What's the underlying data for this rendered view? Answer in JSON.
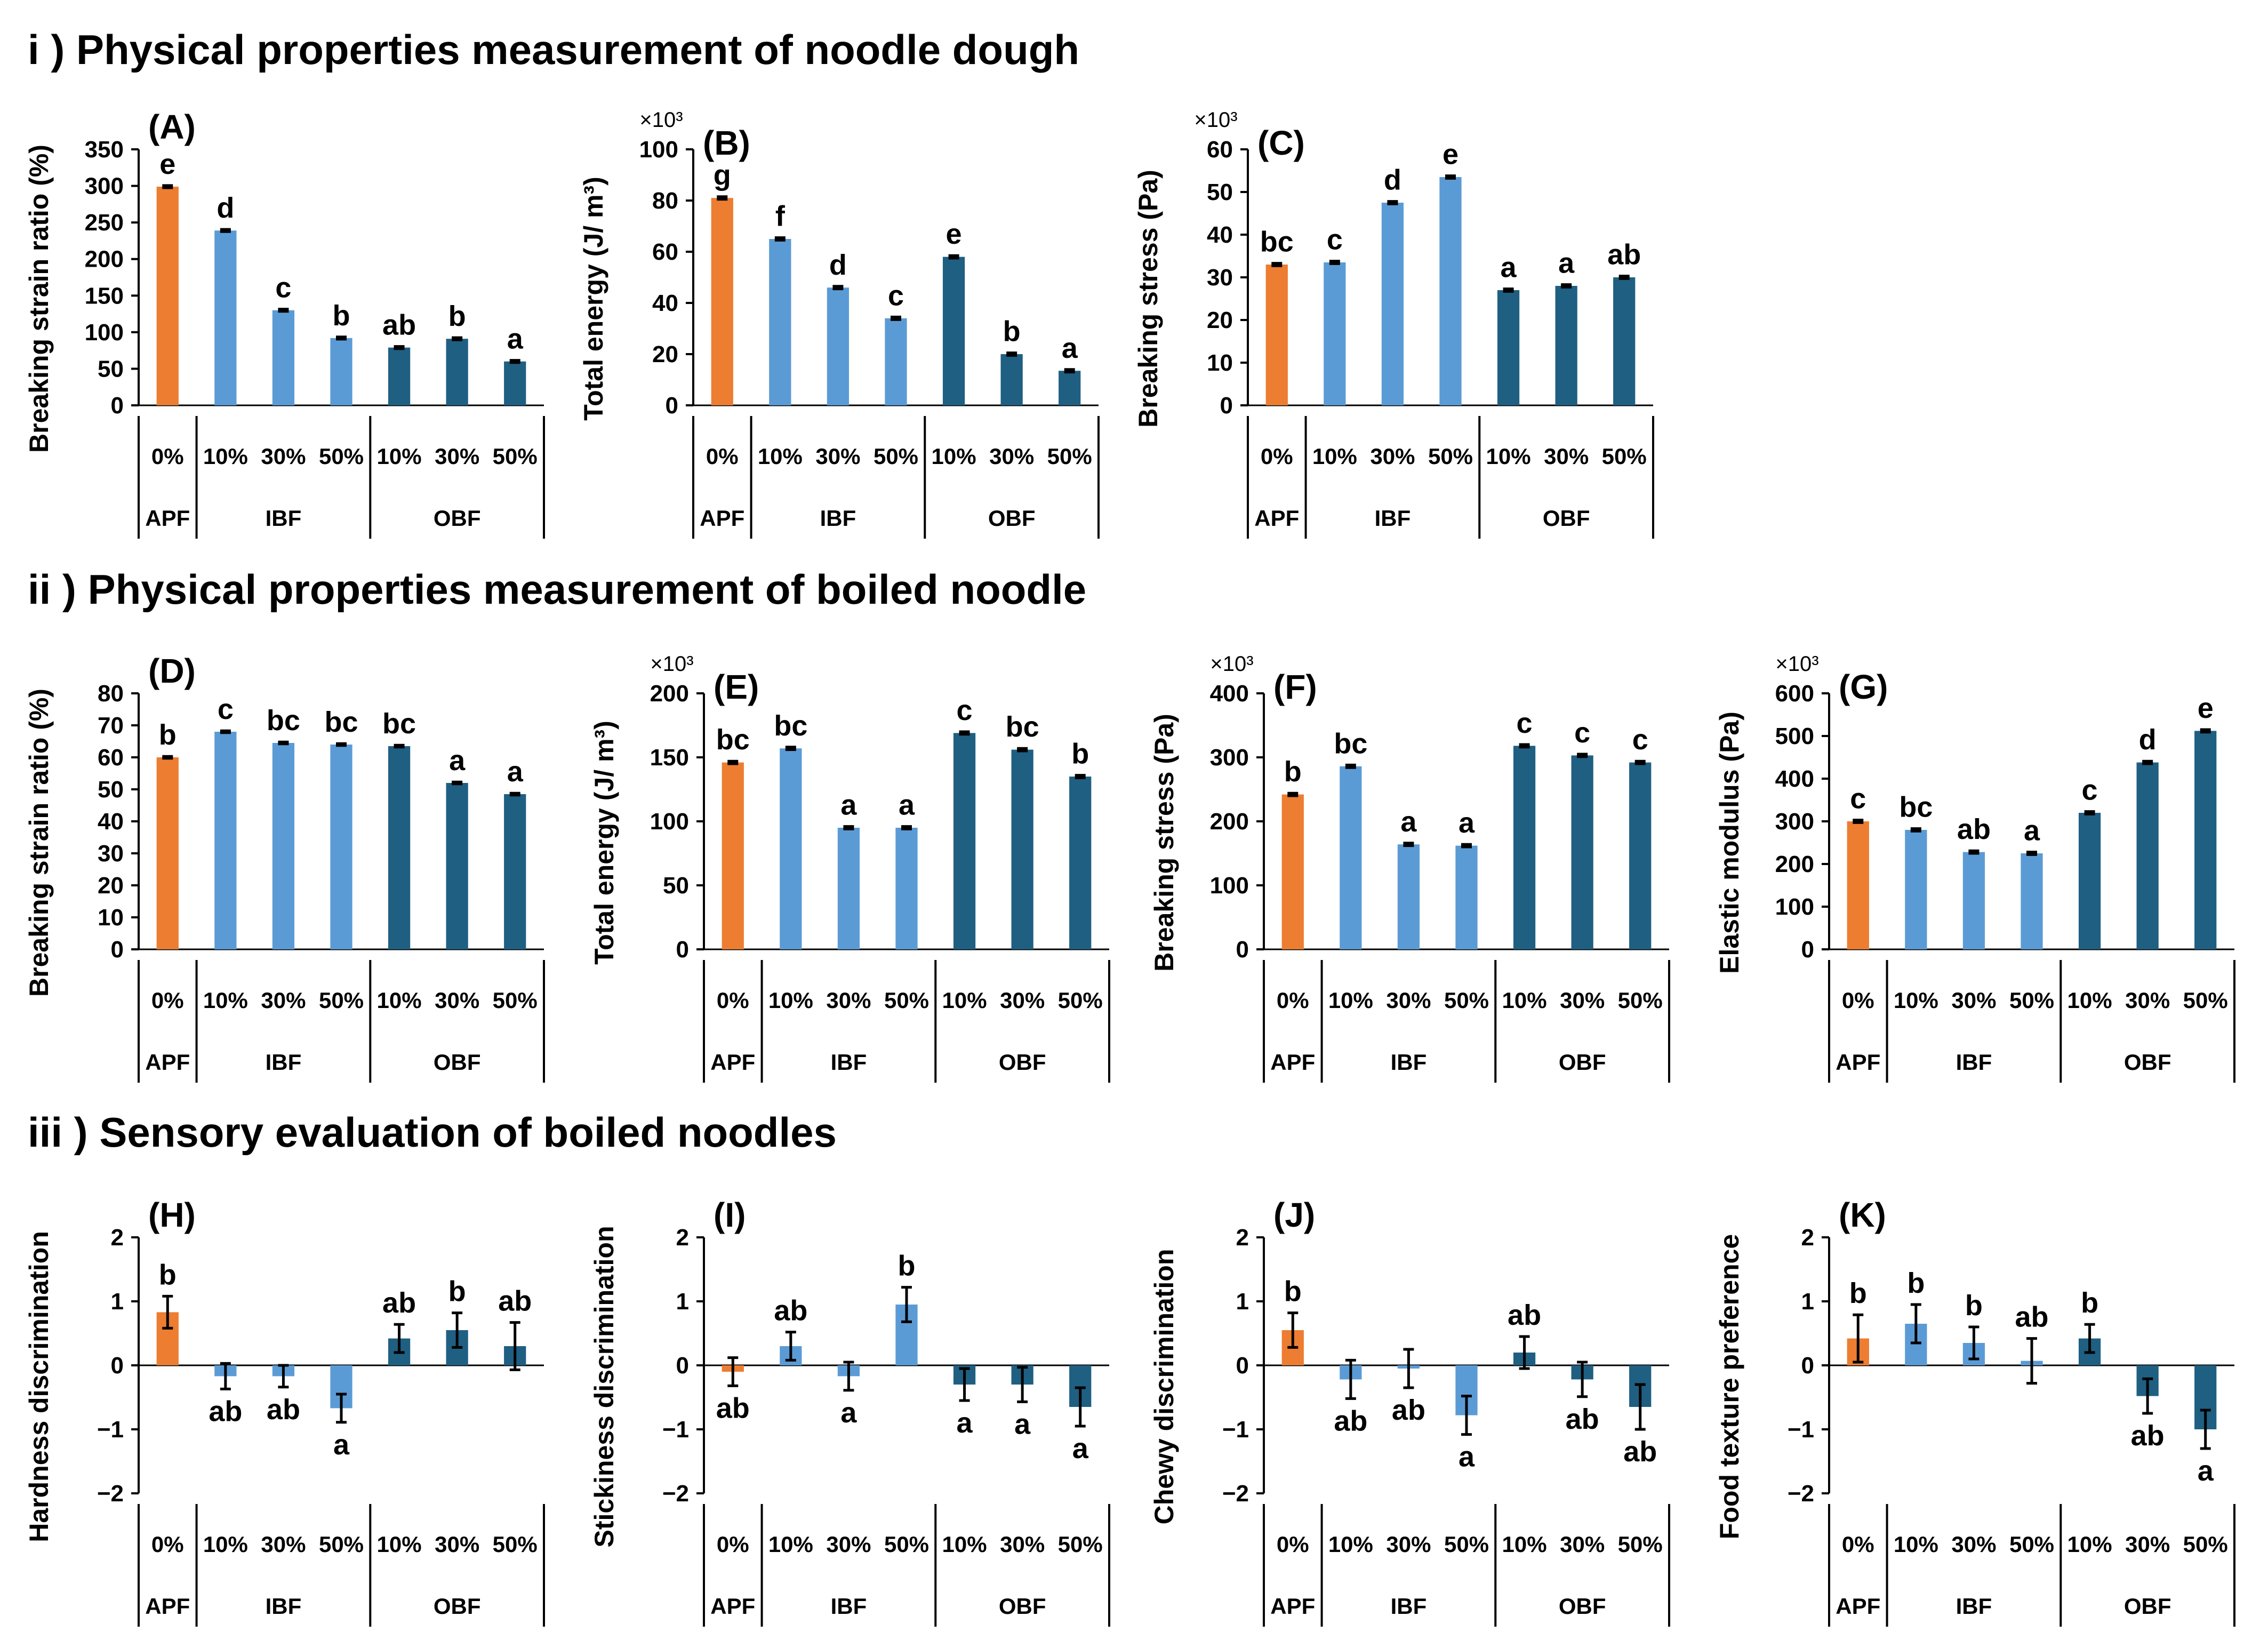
{
  "sections": [
    {
      "title": "i ) Physical properties measurement of noodle dough"
    },
    {
      "title": "ii ) Physical properties measurement of boiled noodle"
    },
    {
      "title": "iii ) Sensory evaluation of boiled noodles"
    }
  ],
  "x_groups": {
    "sub_labels": [
      "0%",
      "10%",
      "30%",
      "50%",
      "10%",
      "30%",
      "50%"
    ],
    "group_labels": [
      "APF",
      "IBF",
      "OBF"
    ]
  },
  "colors": {
    "APF": "#ED7D31",
    "IBF": "#5B9BD5",
    "OBF": "#1F5F82",
    "error_bar": "#000000"
  },
  "chart_data": [
    {
      "id": "A",
      "panel_label": "(A)",
      "type": "bar",
      "ylabel": "Breaking strain ratio (%)",
      "multiplier": "",
      "ylim": [
        0,
        350
      ],
      "yticks": [
        0,
        50,
        100,
        150,
        200,
        250,
        300,
        350
      ],
      "values": [
        299,
        239,
        130,
        92,
        79,
        91,
        60
      ],
      "errors": [
        1.5,
        1.5,
        1.5,
        1.5,
        1.5,
        1.5,
        1.5
      ],
      "letters": [
        "e",
        "d",
        "c",
        "b",
        "ab",
        "b",
        "a"
      ]
    },
    {
      "id": "B",
      "panel_label": "(B)",
      "type": "bar",
      "ylabel": "Total energy (J/ m³)",
      "multiplier": "×10³",
      "ylim": [
        0,
        100
      ],
      "yticks": [
        0,
        20,
        40,
        60,
        80,
        100
      ],
      "values": [
        81,
        65,
        46,
        34,
        58,
        20,
        13.5
      ],
      "errors": [
        0.5,
        0.5,
        0.5,
        0.5,
        0.5,
        0.5,
        0.5
      ],
      "letters": [
        "g",
        "f",
        "d",
        "c",
        "e",
        "b",
        "a"
      ]
    },
    {
      "id": "C",
      "panel_label": "(C)",
      "type": "bar",
      "ylabel": "Breaking stress (Pa)",
      "multiplier": "×10³",
      "ylim": [
        0,
        60
      ],
      "yticks": [
        0,
        10,
        20,
        30,
        40,
        50,
        60
      ],
      "values": [
        33,
        33.5,
        47.5,
        53.5,
        27,
        28,
        30
      ],
      "errors": [
        0.3,
        0.3,
        0.3,
        0.3,
        0.3,
        0.3,
        0.3
      ],
      "letters": [
        "bc",
        "c",
        "d",
        "e",
        "a",
        "a",
        "ab"
      ]
    },
    {
      "id": "D",
      "panel_label": "(D)",
      "type": "bar",
      "ylabel": "Breaking strain ratio (%)",
      "multiplier": "",
      "ylim": [
        0,
        80
      ],
      "yticks": [
        0,
        10,
        20,
        30,
        40,
        50,
        60,
        70,
        80
      ],
      "values": [
        60,
        68,
        64.5,
        64,
        63.5,
        52,
        48.5
      ],
      "errors": [
        0.3,
        0.3,
        0.3,
        0.3,
        0.3,
        0.3,
        0.3
      ],
      "letters": [
        "b",
        "c",
        "bc",
        "bc",
        "bc",
        "a",
        "a"
      ]
    },
    {
      "id": "E",
      "panel_label": "(E)",
      "type": "bar",
      "ylabel": "Total energy (J/ m³)",
      "multiplier": "×10³",
      "ylim": [
        0,
        200
      ],
      "yticks": [
        0,
        50,
        100,
        150,
        200
      ],
      "values": [
        146,
        157,
        95,
        95,
        169,
        156,
        135
      ],
      "errors": [
        1,
        1,
        1,
        1,
        1,
        1,
        1
      ],
      "letters": [
        "bc",
        "bc",
        "a",
        "a",
        "c",
        "bc",
        "b"
      ]
    },
    {
      "id": "F",
      "panel_label": "(F)",
      "type": "bar",
      "ylabel": "Breaking stress (Pa)",
      "multiplier": "×10³",
      "ylim": [
        0,
        400
      ],
      "yticks": [
        0,
        100,
        200,
        300,
        400
      ],
      "values": [
        242,
        286,
        164,
        162,
        318,
        303,
        292
      ],
      "errors": [
        2,
        2,
        2,
        2,
        2,
        2,
        2
      ],
      "letters": [
        "b",
        "bc",
        "a",
        "a",
        "c",
        "c",
        "c"
      ]
    },
    {
      "id": "G",
      "panel_label": "(G)",
      "type": "bar",
      "ylabel": "Elastic modulus  (Pa)",
      "multiplier": "×10³",
      "ylim": [
        0,
        600
      ],
      "yticks": [
        0,
        100,
        200,
        300,
        400,
        500,
        600
      ],
      "values": [
        300,
        280,
        228,
        225,
        320,
        438,
        512
      ],
      "errors": [
        3,
        3,
        3,
        3,
        3,
        3,
        3
      ],
      "letters": [
        "c",
        "bc",
        "ab",
        "a",
        "c",
        "d",
        "e"
      ]
    },
    {
      "id": "H",
      "panel_label": "(H)",
      "type": "bar",
      "ylabel": "Hardness discrimination",
      "multiplier": "",
      "ylim": [
        -2,
        2
      ],
      "yticks": [
        -2,
        -1,
        0,
        1,
        2
      ],
      "values": [
        0.83,
        -0.17,
        -0.17,
        -0.67,
        0.42,
        0.55,
        0.3
      ],
      "errors": [
        0.25,
        0.2,
        0.17,
        0.22,
        0.22,
        0.27,
        0.37
      ],
      "letters": [
        "b",
        "ab",
        "ab",
        "a",
        "ab",
        "b",
        "ab"
      ]
    },
    {
      "id": "I",
      "panel_label": "(I)",
      "type": "bar",
      "ylabel": "Stickiness discrimination",
      "multiplier": "",
      "ylim": [
        -2,
        2
      ],
      "yticks": [
        -2,
        -1,
        0,
        1,
        2
      ],
      "values": [
        -0.1,
        0.3,
        -0.17,
        0.95,
        -0.3,
        -0.3,
        -0.65
      ],
      "errors": [
        0.22,
        0.22,
        0.22,
        0.27,
        0.25,
        0.27,
        0.3
      ],
      "letters": [
        "ab",
        "ab",
        "a",
        "b",
        "a",
        "a",
        "a"
      ]
    },
    {
      "id": "J",
      "panel_label": "(J)",
      "type": "bar",
      "ylabel": "Chewy discrimination",
      "multiplier": "",
      "ylim": [
        -2,
        2
      ],
      "yticks": [
        -2,
        -1,
        0,
        1,
        2
      ],
      "values": [
        0.55,
        -0.22,
        -0.05,
        -0.78,
        0.2,
        -0.22,
        -0.65
      ],
      "errors": [
        0.27,
        0.3,
        0.3,
        0.3,
        0.25,
        0.27,
        0.35
      ],
      "letters": [
        "b",
        "ab",
        "ab",
        "a",
        "ab",
        "ab",
        "ab"
      ]
    },
    {
      "id": "K",
      "panel_label": "(K)",
      "type": "bar",
      "ylabel": "Food texture preference",
      "multiplier": "",
      "ylim": [
        -2,
        2
      ],
      "yticks": [
        -2,
        -1,
        0,
        1,
        2
      ],
      "values": [
        0.42,
        0.65,
        0.35,
        0.07,
        0.42,
        -0.48,
        -1.0
      ],
      "errors": [
        0.37,
        0.3,
        0.25,
        0.35,
        0.22,
        0.27,
        0.3
      ],
      "letters": [
        "b",
        "b",
        "b",
        "ab",
        "b",
        "ab",
        "a"
      ]
    }
  ]
}
